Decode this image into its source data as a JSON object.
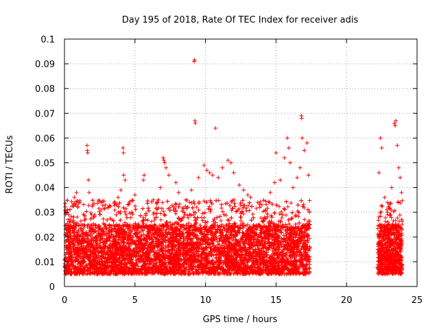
{
  "chart_data": {
    "type": "scatter",
    "title": "Day 195 of 2018, Rate Of TEC Index for receiver adis",
    "xlabel": "GPS time / hours",
    "ylabel": "ROTI / TECUs",
    "xlim": [
      0,
      25
    ],
    "ylim": [
      0,
      0.1
    ],
    "xticks": [
      0,
      5,
      10,
      15,
      20,
      25
    ],
    "xtick_labels": [
      "0",
      "5",
      "10",
      "15",
      "20",
      "25"
    ],
    "yticks": [
      0,
      0.01,
      0.02,
      0.03,
      0.04,
      0.05,
      0.06,
      0.07,
      0.08,
      0.09,
      0.1
    ],
    "ytick_labels": [
      "0",
      "0.01",
      "0.02",
      "0.03",
      "0.04",
      "0.05",
      "0.06",
      "0.07",
      "0.08",
      "0.09",
      "0.1"
    ],
    "grid": true,
    "marker": "+",
    "color": "#ff0000",
    "series": [
      {
        "name": "ROTI",
        "coverage_hours": [
          [
            0.0,
            17.4
          ],
          [
            22.2,
            23.95
          ]
        ],
        "typical_range": [
          0.005,
          0.025
        ],
        "points": [
          [
            0.1,
            0.018
          ],
          [
            0.25,
            0.027
          ],
          [
            0.3,
            0.029
          ],
          [
            0.7,
            0.036
          ],
          [
            0.85,
            0.038
          ],
          [
            1.1,
            0.034
          ],
          [
            1.6,
            0.057
          ],
          [
            1.62,
            0.055
          ],
          [
            1.65,
            0.054
          ],
          [
            1.7,
            0.043
          ],
          [
            1.75,
            0.038
          ],
          [
            2.0,
            0.033
          ],
          [
            2.6,
            0.031
          ],
          [
            2.9,
            0.033
          ],
          [
            3.1,
            0.032
          ],
          [
            3.8,
            0.036
          ],
          [
            4.0,
            0.039
          ],
          [
            4.15,
            0.056
          ],
          [
            4.18,
            0.054
          ],
          [
            4.2,
            0.045
          ],
          [
            4.3,
            0.043
          ],
          [
            5.0,
            0.037
          ],
          [
            5.6,
            0.043
          ],
          [
            5.65,
            0.045
          ],
          [
            6.3,
            0.035
          ],
          [
            6.8,
            0.04
          ],
          [
            7.0,
            0.052
          ],
          [
            7.05,
            0.051
          ],
          [
            7.1,
            0.05
          ],
          [
            7.2,
            0.048
          ],
          [
            7.4,
            0.045
          ],
          [
            7.9,
            0.042
          ],
          [
            8.1,
            0.038
          ],
          [
            8.6,
            0.035
          ],
          [
            9.0,
            0.039
          ],
          [
            9.2,
            0.091
          ],
          [
            9.22,
            0.0915
          ],
          [
            9.25,
            0.067
          ],
          [
            9.28,
            0.066
          ],
          [
            9.5,
            0.044
          ],
          [
            9.9,
            0.049
          ],
          [
            10.1,
            0.047
          ],
          [
            10.3,
            0.046
          ],
          [
            10.5,
            0.045
          ],
          [
            10.7,
            0.064
          ],
          [
            10.9,
            0.044
          ],
          [
            11.2,
            0.048
          ],
          [
            11.6,
            0.051
          ],
          [
            11.8,
            0.05
          ],
          [
            12.0,
            0.046
          ],
          [
            12.4,
            0.041
          ],
          [
            12.7,
            0.039
          ],
          [
            13.0,
            0.037
          ],
          [
            13.2,
            0.036
          ],
          [
            13.7,
            0.034
          ],
          [
            14.0,
            0.033
          ],
          [
            14.6,
            0.038
          ],
          [
            14.9,
            0.042
          ],
          [
            15.0,
            0.054
          ],
          [
            15.3,
            0.043
          ],
          [
            15.6,
            0.052
          ],
          [
            15.8,
            0.06
          ],
          [
            15.9,
            0.056
          ],
          [
            16.0,
            0.05
          ],
          [
            16.2,
            0.04
          ],
          [
            16.5,
            0.044
          ],
          [
            16.7,
            0.048
          ],
          [
            16.8,
            0.069
          ],
          [
            16.82,
            0.068
          ],
          [
            16.85,
            0.06
          ],
          [
            17.0,
            0.055
          ],
          [
            17.2,
            0.058
          ],
          [
            17.3,
            0.045
          ],
          [
            22.3,
            0.046
          ],
          [
            22.4,
            0.06
          ],
          [
            22.5,
            0.056
          ],
          [
            22.7,
            0.036
          ],
          [
            22.9,
            0.03
          ],
          [
            23.2,
            0.04
          ],
          [
            23.4,
            0.066
          ],
          [
            23.45,
            0.065
          ],
          [
            23.5,
            0.067
          ],
          [
            23.6,
            0.057
          ],
          [
            23.7,
            0.048
          ],
          [
            23.8,
            0.044
          ],
          [
            23.9,
            0.038
          ]
        ]
      }
    ]
  }
}
